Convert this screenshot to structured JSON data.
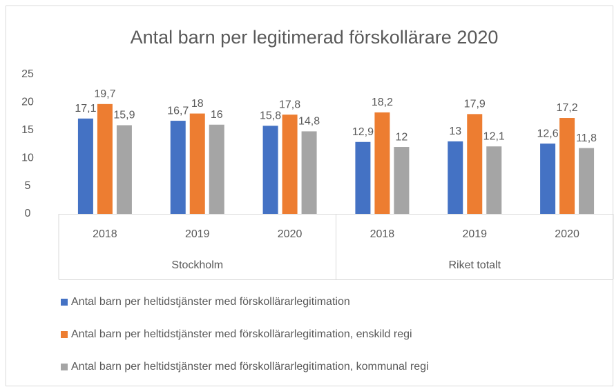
{
  "chart_data": {
    "type": "bar",
    "title": "Antal barn per legitimerad förskollärare 2020",
    "categories": [
      "2018",
      "2019",
      "2020",
      "2018",
      "2019",
      "2020"
    ],
    "groups": [
      "Stockholm",
      "Riket totalt"
    ],
    "series": [
      {
        "name": "Antal barn per heltidstjänster med förskollärarlegitimation",
        "color": "#4472c4",
        "values": [
          17.1,
          16.7,
          15.8,
          12.9,
          13,
          12.6
        ],
        "value_labels": [
          "17,1",
          "16,7",
          "15,8",
          "12,9",
          "13",
          "12,6"
        ]
      },
      {
        "name": "Antal barn per heltidstjänster med förskollärarlegitimation, enskild regi",
        "color": "#ed7d31",
        "values": [
          19.7,
          18,
          17.8,
          18.2,
          17.9,
          17.2
        ],
        "value_labels": [
          "19,7",
          "18",
          "17,8",
          "18,2",
          "17,9",
          "17,2"
        ]
      },
      {
        "name": "Antal barn per heltidstjänster med förskollärarlegitimation, kommunal regi",
        "color": "#a5a5a5",
        "values": [
          15.9,
          16,
          14.8,
          12,
          12.1,
          11.8
        ],
        "value_labels": [
          "15,9",
          "16",
          "14,8",
          "12",
          "12,1",
          "11,8"
        ]
      }
    ],
    "ylim": [
      0,
      25
    ],
    "yticks": [
      0,
      5,
      10,
      15,
      20,
      25
    ],
    "grid": false,
    "legend": "bottom"
  }
}
